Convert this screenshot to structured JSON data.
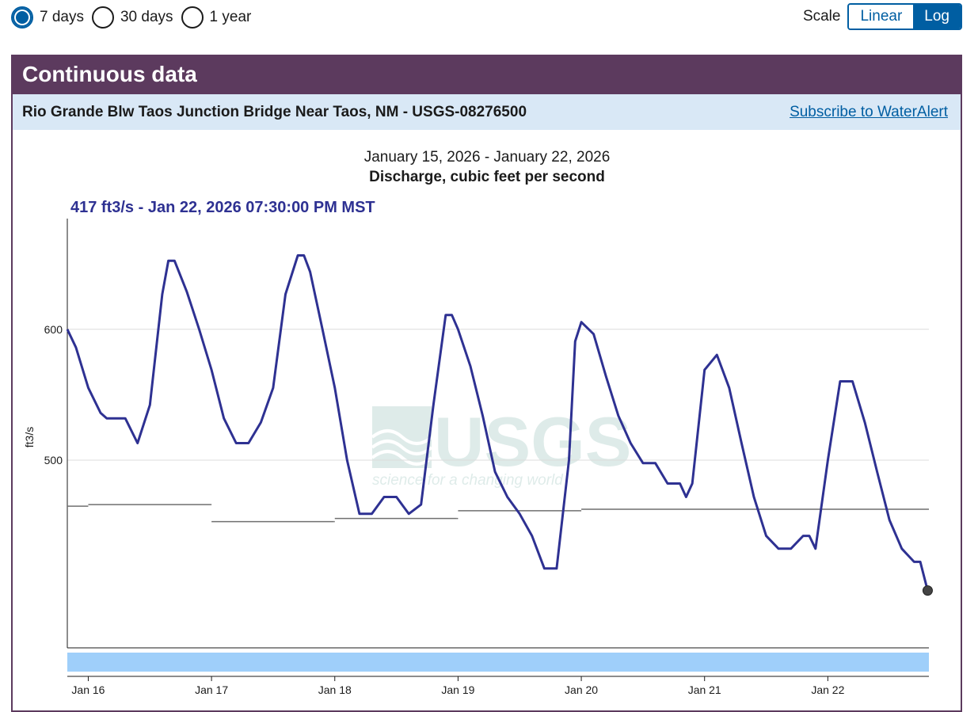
{
  "period": {
    "options": [
      {
        "label": "7 days",
        "selected": true
      },
      {
        "label": "30 days",
        "selected": false
      },
      {
        "label": "1 year",
        "selected": false
      }
    ]
  },
  "scale": {
    "label": "Scale",
    "options": [
      "Linear",
      "Log"
    ],
    "selected": "Log"
  },
  "panel": {
    "title": "Continuous data",
    "site_name": "Rio Grande Blw Taos Junction Bridge Near Taos, NM - USGS-08276500",
    "subscribe_label": "Subscribe to WaterAlert"
  },
  "watermark": {
    "logo_text": "USGS",
    "tagline": "science for a changing world"
  },
  "colors": {
    "series": "#2e3192",
    "median": "#6f6f6f",
    "header": "#5c3a5e",
    "accent": "#005ea2",
    "brush": "#9fcffa",
    "site_bar": "#d9e8f6"
  },
  "chart_data": {
    "type": "line",
    "date_range": "January 15, 2026 - January 22, 2026",
    "title": "Discharge, cubic feet per second",
    "ylabel": "ft3/s",
    "y_scale": "log",
    "ylim": [
      385,
      700
    ],
    "yticks": [
      600,
      500
    ],
    "xlim": [
      15.83,
      22.82
    ],
    "x_ticks": [
      {
        "x": 16,
        "label": "Jan 16"
      },
      {
        "x": 17,
        "label": "Jan 17"
      },
      {
        "x": 18,
        "label": "Jan 18"
      },
      {
        "x": 19,
        "label": "Jan 19"
      },
      {
        "x": 20,
        "label": "Jan 20"
      },
      {
        "x": 21,
        "label": "Jan 21"
      },
      {
        "x": 22,
        "label": "Jan 22"
      }
    ],
    "grid": true,
    "current_value": {
      "x": 22.81,
      "y": 417,
      "label": "417 ft3/s - Jan 22, 2026 07:30:00 PM MST"
    },
    "series": [
      {
        "x": [
          15.83,
          15.9,
          16.0,
          16.1,
          16.15,
          16.3,
          16.4,
          16.5,
          16.6,
          16.65,
          16.7,
          16.8,
          16.9,
          17.0,
          17.1,
          17.2,
          17.3,
          17.4,
          17.5,
          17.6,
          17.7,
          17.75,
          17.8,
          17.9,
          18.0,
          18.1,
          18.2,
          18.3,
          18.4,
          18.5,
          18.6,
          18.7,
          18.8,
          18.9,
          18.95,
          19.0,
          19.1,
          19.2,
          19.3,
          19.4,
          19.5,
          19.6,
          19.7,
          19.8,
          19.9,
          19.95,
          20.0,
          20.1,
          20.2,
          20.3,
          20.4,
          20.5,
          20.6,
          20.7,
          20.8,
          20.85,
          20.9,
          21.0,
          21.1,
          21.2,
          21.3,
          21.4,
          21.5,
          21.6,
          21.7,
          21.8,
          21.85,
          21.9,
          22.0,
          22.1,
          22.2,
          22.3,
          22.4,
          22.5,
          22.6,
          22.7,
          22.75,
          22.81
        ],
        "y": [
          600,
          585,
          553,
          534,
          530,
          530,
          512,
          540,
          630,
          660,
          660,
          632,
          600,
          567,
          530,
          512,
          512,
          527,
          553,
          630,
          665,
          665,
          650,
          600,
          553,
          500,
          464,
          464,
          475,
          475,
          464,
          470,
          540,
          612,
          612,
          600,
          570,
          532,
          492,
          475,
          464,
          450,
          430,
          430,
          500,
          590,
          606,
          596,
          562,
          532,
          512,
          498,
          498,
          484,
          484,
          475,
          484,
          567,
          579,
          553,
          512,
          475,
          450,
          442,
          442,
          450,
          450,
          442,
          500,
          558,
          558,
          527,
          492,
          460,
          442,
          434,
          434,
          417
        ]
      },
      {
        "name": "median",
        "x": [
          15.83,
          16.0,
          16.99,
          17.0,
          17.99,
          18.0,
          18.99,
          19.0,
          19.99,
          20.0,
          22.82
        ],
        "y": [
          469,
          470,
          470,
          459,
          459,
          461,
          461,
          466,
          466,
          467,
          467
        ]
      }
    ]
  }
}
